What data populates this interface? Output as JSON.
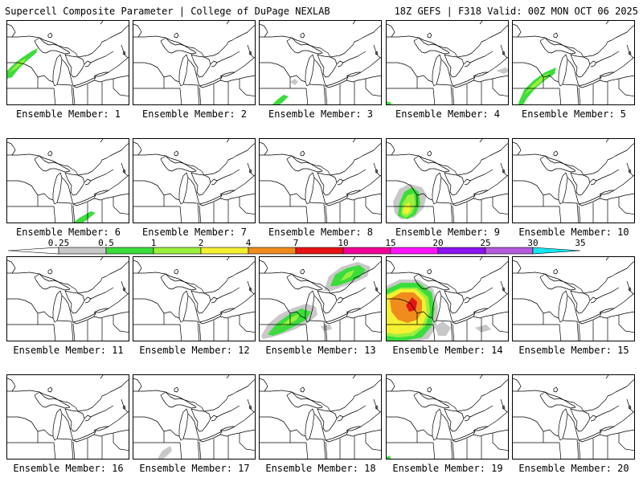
{
  "header": {
    "left": "Supercell Composite Parameter | College of DuPage NEXLAB",
    "right": "18Z GEFS | F318 Valid: 00Z MON OCT 06 2025"
  },
  "panels": [
    {
      "label": "Ensemble Member: 1",
      "overlay": "m1"
    },
    {
      "label": "Ensemble Member: 2",
      "overlay": ""
    },
    {
      "label": "Ensemble Member: 3",
      "overlay": "m3"
    },
    {
      "label": "Ensemble Member: 4",
      "overlay": "m4"
    },
    {
      "label": "Ensemble Member: 5",
      "overlay": "m5"
    },
    {
      "label": "Ensemble Member: 6",
      "overlay": "m6"
    },
    {
      "label": "Ensemble Member: 7",
      "overlay": ""
    },
    {
      "label": "Ensemble Member: 8",
      "overlay": ""
    },
    {
      "label": "Ensemble Member: 9",
      "overlay": "m9"
    },
    {
      "label": "Ensemble Member: 10",
      "overlay": ""
    },
    {
      "label": "Ensemble Member: 11",
      "overlay": ""
    },
    {
      "label": "Ensemble Member: 12",
      "overlay": ""
    },
    {
      "label": "Ensemble Member: 13",
      "overlay": "m13"
    },
    {
      "label": "Ensemble Member: 14",
      "overlay": "m14"
    },
    {
      "label": "Ensemble Member: 15",
      "overlay": ""
    },
    {
      "label": "Ensemble Member: 16",
      "overlay": ""
    },
    {
      "label": "Ensemble Member: 17",
      "overlay": "m17"
    },
    {
      "label": "Ensemble Member: 18",
      "overlay": ""
    },
    {
      "label": "Ensemble Member: 19",
      "overlay": "m19"
    },
    {
      "label": "Ensemble Member: 20",
      "overlay": ""
    }
  ],
  "colorbar": {
    "labels": [
      "0.25",
      "0.5",
      "1",
      "2",
      "4",
      "7",
      "10",
      "15",
      "20",
      "25",
      "30",
      "35"
    ],
    "colors": [
      "#c8c8c8",
      "#3cdc3c",
      "#9bf03c",
      "#f5f032",
      "#f08c1e",
      "#e61414",
      "#f00096",
      "#ff14ff",
      "#8c14f0",
      "#b45adc",
      "#14e6f0"
    ]
  }
}
